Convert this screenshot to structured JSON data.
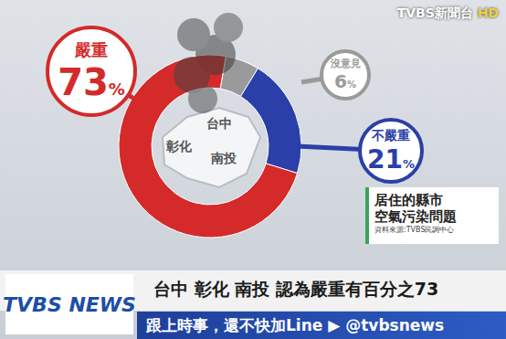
{
  "chart_data": {
    "type": "pie",
    "title": "居住的縣市 空氣污染問題",
    "source": "資料來源:TVBS民調中心",
    "categories": [
      "沒意見",
      "不嚴重",
      "嚴重"
    ],
    "values": [
      6,
      21,
      73
    ],
    "value_labels": [
      "6%",
      "21%",
      "73%"
    ],
    "colors": [
      "#9a9a9a",
      "#2b3fa8",
      "#d42a2a"
    ],
    "data_labels": true,
    "annotations": {
      "map_labels": [
        "彰化",
        "台中",
        "南投"
      ],
      "caption": "台中 彰化 南投 認為嚴重有百分之73",
      "ticker": "跟上時事，還不快加Line ▶ @tvbsnews",
      "channel_logo": "TVBS新聞台",
      "channel_badge": "HD",
      "news_logo": "TVBS NEWS"
    }
  }
}
